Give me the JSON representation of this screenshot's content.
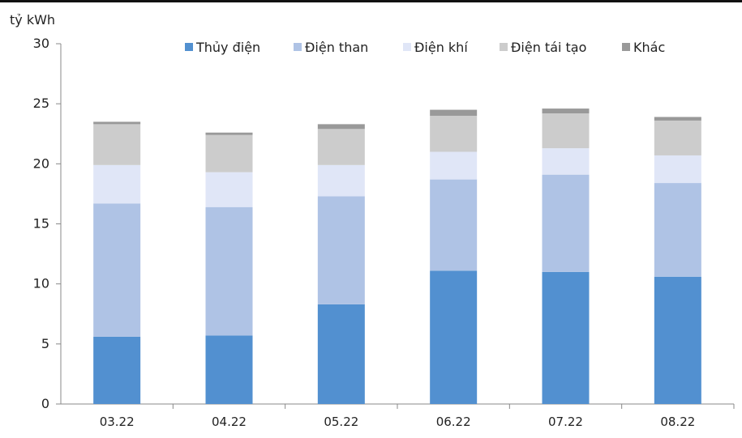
{
  "chart_data": {
    "type": "bar",
    "stacked": true,
    "ylabel": "tỷ kWh",
    "ylim": [
      0,
      30
    ],
    "yticks": [
      0,
      5,
      10,
      15,
      20,
      25,
      30
    ],
    "categories": [
      "03.22",
      "04.22",
      "05.22",
      "06.22",
      "07.22",
      "08.22"
    ],
    "legend_position": "top",
    "grid": false,
    "series": [
      {
        "name": "Thủy điện",
        "color": "#5290D0",
        "values": [
          5.6,
          5.7,
          8.3,
          11.1,
          11.0,
          10.6
        ]
      },
      {
        "name": "Điện than",
        "color": "#AFC3E5",
        "values": [
          11.1,
          10.7,
          9.0,
          7.6,
          8.1,
          7.8
        ]
      },
      {
        "name": "Điện khí",
        "color": "#E0E6F7",
        "values": [
          3.2,
          2.9,
          2.6,
          2.3,
          2.2,
          2.3
        ]
      },
      {
        "name": "Điện tái tạo",
        "color": "#CCCCCC",
        "values": [
          3.4,
          3.1,
          3.0,
          3.0,
          2.9,
          2.9
        ]
      },
      {
        "name": "Khác",
        "color": "#999999",
        "values": [
          0.2,
          0.2,
          0.4,
          0.5,
          0.4,
          0.3
        ]
      }
    ]
  }
}
